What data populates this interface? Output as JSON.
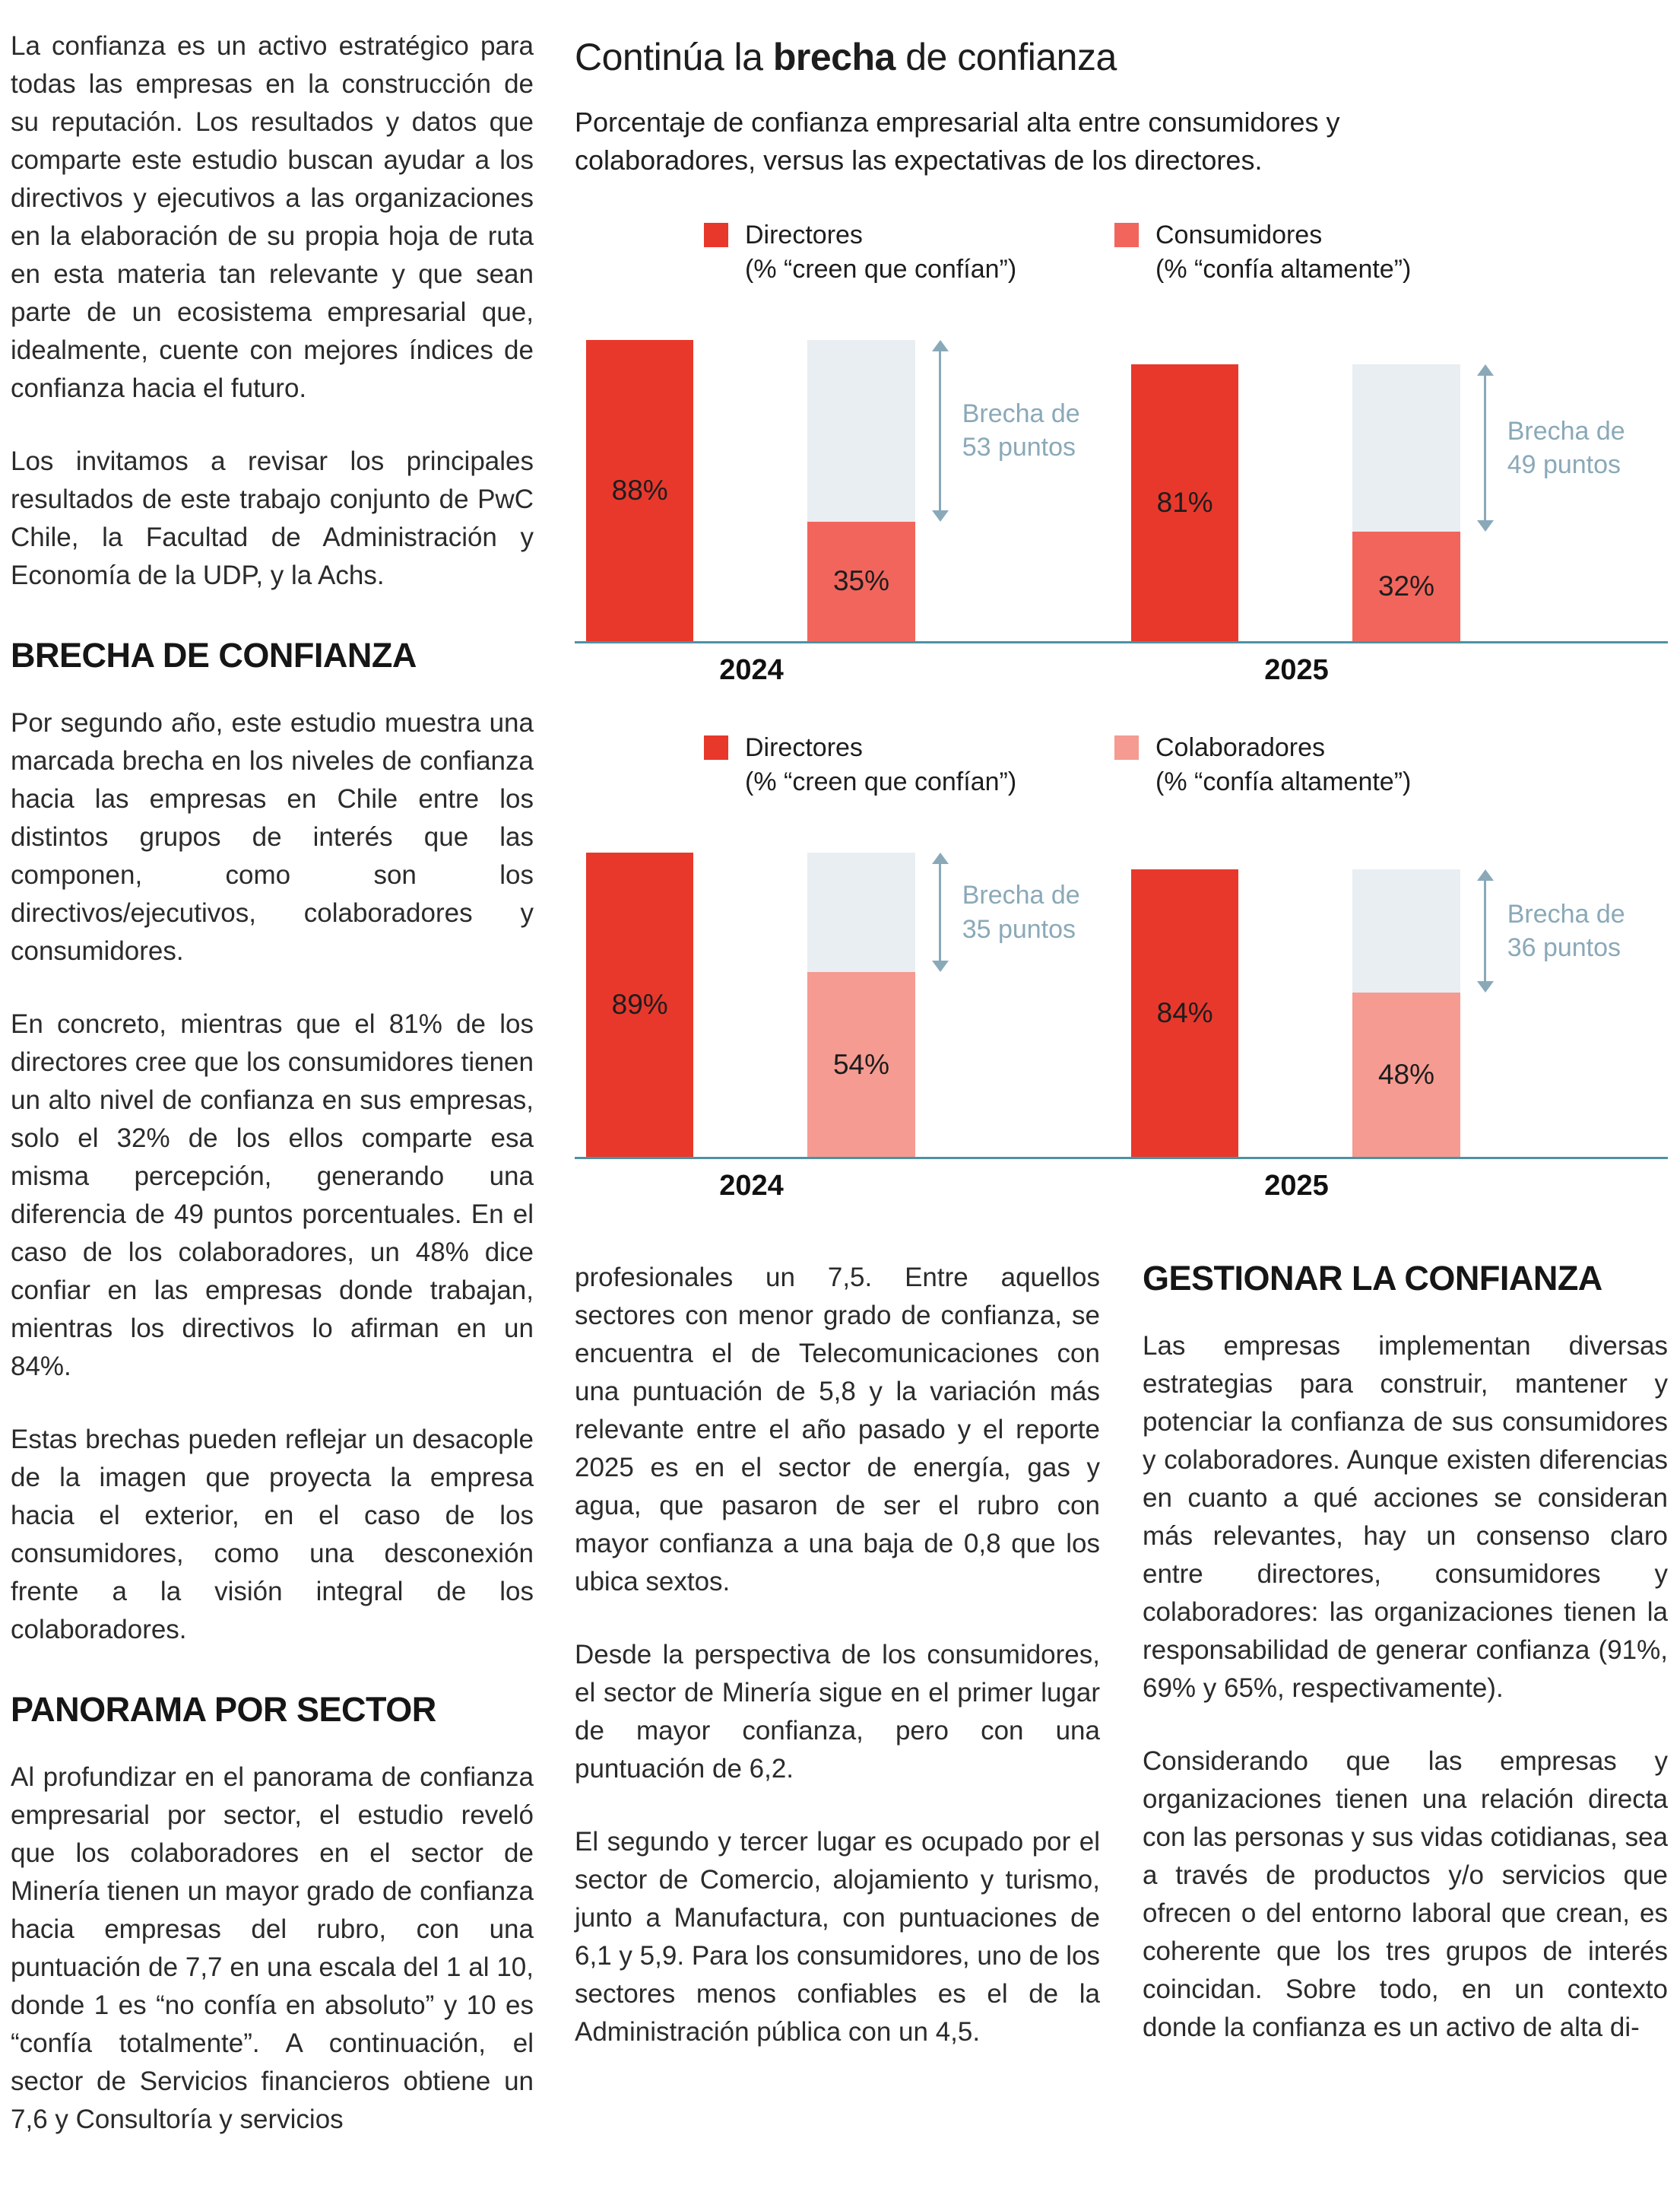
{
  "article": {
    "left_column": {
      "p1": "La confianza es un activo estratégico para todas las empresas en la construcción de su reputación. Los resultados y datos que comparte este estudio buscan ayudar a los directivos y ejecutivos a las organizaciones en la elaboración de su propia hoja de ruta en esta materia tan relevante y que sean parte de un ecosistema empresarial que, idealmente, cuente con mejores índices de confianza hacia el futuro.",
      "p2": "Los invitamos a revisar los principales resultados de este trabajo conjunto de PwC Chile, la Facultad de Administración y Economía de la UDP, y la Achs.",
      "heading1": "BRECHA DE CONFIANZA",
      "p3": "Por segundo año, este estudio muestra una marcada brecha en los niveles de confianza hacia las empresas en Chile entre los distintos grupos de interés que las componen, como son los directivos/ejecutivos, colaboradores y consumidores.",
      "p4": "En concreto, mientras que el 81% de los directores cree que los consumidores tienen un alto nivel de confianza en sus empresas, solo el 32% de los ellos comparte esa misma percepción, generando una diferencia de 49 puntos porcentuales. En el caso de los colaboradores, un 48% dice confiar en las empresas donde trabajan, mientras los directivos lo afirman en un 84%.",
      "p5": "Estas brechas pueden reflejar un desacople de la imagen que proyecta la empresa hacia el exterior, en el caso de los consumidores, como una desconexión frente a la visión integral de los colaboradores.",
      "heading2": "PANORAMA POR SECTOR",
      "p6": "Al profundizar en el panorama de confianza empresarial por sector, el estudio reveló que los colaboradores en el sector de Minería tienen un mayor grado de confianza hacia empresas del rubro, con una puntuación de 7,7 en una escala del 1 al 10, donde 1 es “no confía en absoluto” y 10 es “confía totalmente”. A continuación, el sector de Servicios financieros obtiene un 7,6 y Consultoría y servicios"
    },
    "middle_column": {
      "p1": "profesionales un 7,5. Entre aquellos sectores con menor grado de confianza, se encuentra el de Telecomunicaciones con una puntuación de 5,8 y la variación más relevante entre el año pasado y el reporte 2025 es en el sector de energía, gas y agua, que pasaron de ser el rubro con mayor confianza a una baja de 0,8 que los ubica sextos.",
      "p2": "Desde la perspectiva de los consumidores, el sector de Minería sigue en el primer lugar de mayor confianza, pero con una puntuación de 6,2.",
      "p3": "El segundo y tercer lugar es ocupado por el sector de Comercio, alojamiento y turismo, junto a Manufactura, con puntuaciones de 6,1 y 5,9. Para los consumidores, uno de los sectores menos confiables es el de la Administración pública con un 4,5."
    },
    "right_column": {
      "heading": "GESTIONAR LA CONFIANZA",
      "p1": "Las empresas implementan diversas estrategias para construir, mantener y potenciar la confianza de sus consumidores y colaboradores. Aunque existen diferencias en cuanto a qué acciones se consideran más relevantes, hay un consenso claro entre directores, consumidores y colaboradores: las organizaciones tienen la responsabilidad de generar confianza (91%, 69% y 65%, respectivamente).",
      "p2": "Considerando que las empresas y organizaciones tienen una relación directa con las personas y sus vidas cotidianas, sea a través de productos y/o servicios que ofrecen o del entorno laboral que crean, es coherente que los tres grupos de interés coincidan. Sobre todo, en un contexto donde la confianza es un activo de alta di-"
    }
  },
  "chart_header": {
    "title_pre": "Continúa la ",
    "title_bold": "brecha",
    "title_post": " de confianza",
    "subtitle": "Porcentaje de confianza empresarial alta entre consumidores y colaboradores, versus las expectativas de los directores."
  },
  "colors": {
    "director_red": "#e8382c",
    "consumer_salmon": "#f2655c",
    "employee_pink": "#f59b91",
    "gap_bar_gray": "#e9eef2",
    "axis_teal": "#4d92a3",
    "annotation_teal": "#8aa9b8"
  },
  "chart_data": [
    {
      "type": "bar",
      "title": "Continúa la brecha de confianza",
      "subtitle": "Porcentaje de confianza empresarial alta entre consumidores y colaboradores, versus las expectativas de los directores.",
      "unit": "%",
      "ylim": [
        0,
        100
      ],
      "legend": [
        {
          "label": "Directores",
          "sublabel": "(% “creen que confían”)",
          "color": "#e8382c"
        },
        {
          "label": "Consumidores",
          "sublabel": "(% “confía altamente”)",
          "color": "#f2655c"
        }
      ],
      "categories": [
        "2024",
        "2025"
      ],
      "groups": [
        {
          "year": "2024",
          "director": 88,
          "other": 35,
          "gap": 53,
          "gap_label": "Brecha de 53 puntos"
        },
        {
          "year": "2025",
          "director": 81,
          "other": 32,
          "gap": 49,
          "gap_label": "Brecha de 49 puntos"
        }
      ]
    },
    {
      "type": "bar",
      "title": "Continúa la brecha de confianza",
      "subtitle": "Porcentaje de confianza empresarial alta entre consumidores y colaboradores, versus las expectativas de los directores.",
      "unit": "%",
      "ylim": [
        0,
        100
      ],
      "legend": [
        {
          "label": "Directores",
          "sublabel": "(% “creen que confían”)",
          "color": "#e8382c"
        },
        {
          "label": "Colaboradores",
          "sublabel": "(% “confía altamente”)",
          "color": "#f59b91"
        }
      ],
      "categories": [
        "2024",
        "2025"
      ],
      "groups": [
        {
          "year": "2024",
          "director": 89,
          "other": 54,
          "gap": 35,
          "gap_label": "Brecha de 35 puntos"
        },
        {
          "year": "2025",
          "director": 84,
          "other": 48,
          "gap": 36,
          "gap_label": "Brecha de 36 puntos"
        }
      ]
    }
  ]
}
